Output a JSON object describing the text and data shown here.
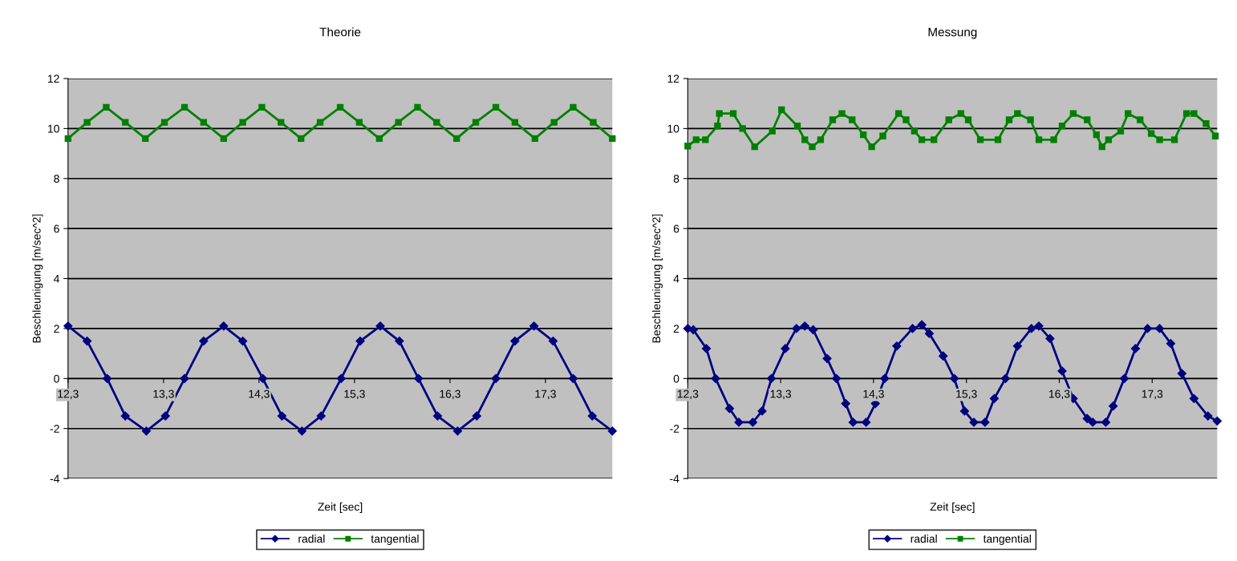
{
  "chart_data": [
    {
      "type": "line",
      "title": "Theorie",
      "xlabel": "Zeit [sec]",
      "ylabel": "Beschleunigung [m/sec^2]",
      "xlim": [
        12.3,
        18.0
      ],
      "ylim": [
        -4,
        12
      ],
      "xticks": [
        {
          "value": 12.3,
          "label": "12,3"
        },
        {
          "value": 13.3,
          "label": "13,3"
        },
        {
          "value": 14.3,
          "label": "14,3"
        },
        {
          "value": 15.3,
          "label": "15,3"
        },
        {
          "value": 16.3,
          "label": "16,3"
        },
        {
          "value": 17.3,
          "label": "17,3"
        }
      ],
      "yticks": [
        -4,
        -2,
        0,
        2,
        4,
        6,
        8,
        10,
        12
      ],
      "grid": "y",
      "legend": "bottom",
      "series": [
        {
          "name": "radial",
          "color": "#000080",
          "marker": "diamond",
          "x": [
            12.3,
            12.5,
            12.71,
            12.9,
            13.12,
            13.32,
            13.52,
            13.72,
            13.93,
            14.13,
            14.34,
            14.54,
            14.75,
            14.95,
            15.16,
            15.36,
            15.57,
            15.77,
            15.97,
            16.17,
            16.38,
            16.58,
            16.78,
            16.98,
            17.18,
            17.38,
            17.59,
            17.79,
            18.0
          ],
          "values": [
            2.1,
            1.5,
            0,
            -1.5,
            -2.1,
            -1.5,
            0,
            1.5,
            2.1,
            1.5,
            0,
            -1.5,
            -2.1,
            -1.5,
            0,
            1.5,
            2.1,
            1.5,
            0,
            -1.5,
            -2.1,
            -1.5,
            0,
            1.5,
            2.1,
            1.5,
            0,
            -1.5,
            -2.1
          ]
        },
        {
          "name": "tangential",
          "color": "#008000",
          "marker": "square",
          "x": [
            12.3,
            12.5,
            12.7,
            12.9,
            13.11,
            13.31,
            13.52,
            13.72,
            13.93,
            14.13,
            14.33,
            14.53,
            14.74,
            14.94,
            15.15,
            15.35,
            15.56,
            15.76,
            15.96,
            16.16,
            16.37,
            16.57,
            16.78,
            16.98,
            17.19,
            17.39,
            17.59,
            17.8,
            18.0
          ],
          "values": [
            9.6,
            10.25,
            10.85,
            10.25,
            9.6,
            10.25,
            10.85,
            10.25,
            9.6,
            10.25,
            10.85,
            10.25,
            9.6,
            10.25,
            10.85,
            10.25,
            9.6,
            10.25,
            10.85,
            10.25,
            9.6,
            10.25,
            10.85,
            10.25,
            9.6,
            10.25,
            10.85,
            10.25,
            9.6
          ]
        }
      ]
    },
    {
      "type": "line",
      "title": "Messung",
      "xlabel": "Zeit [sec]",
      "ylabel": "Beschleunigung [m/sec^2]",
      "xlim": [
        12.3,
        18.0
      ],
      "ylim": [
        -4,
        12
      ],
      "xticks": [
        {
          "value": 12.3,
          "label": "12,3"
        },
        {
          "value": 13.3,
          "label": "13,3"
        },
        {
          "value": 14.3,
          "label": "14,3"
        },
        {
          "value": 15.3,
          "label": "15,3"
        },
        {
          "value": 16.3,
          "label": "16,3"
        },
        {
          "value": 17.3,
          "label": "17,3"
        }
      ],
      "yticks": [
        -4,
        -2,
        0,
        2,
        4,
        6,
        8,
        10,
        12
      ],
      "grid": "y",
      "legend": "bottom",
      "series": [
        {
          "name": "radial",
          "color": "#000080",
          "marker": "diamond",
          "x": [
            12.3,
            12.36,
            12.5,
            12.6,
            12.75,
            12.85,
            13.0,
            13.1,
            13.2,
            13.35,
            13.47,
            13.56,
            13.65,
            13.8,
            13.9,
            14.0,
            14.08,
            14.22,
            14.32,
            14.42,
            14.55,
            14.72,
            14.82,
            14.9,
            15.05,
            15.17,
            15.28,
            15.38,
            15.5,
            15.6,
            15.72,
            15.85,
            16.0,
            16.08,
            16.2,
            16.33,
            16.45,
            16.6,
            16.66,
            16.8,
            16.88,
            17.0,
            17.12,
            17.25,
            17.38,
            17.5,
            17.62,
            17.75,
            17.9,
            18.0
          ],
          "values": [
            2.0,
            1.95,
            1.2,
            0.0,
            -1.2,
            -1.75,
            -1.75,
            -1.3,
            0.0,
            1.2,
            2.0,
            2.1,
            1.95,
            0.8,
            0,
            -1.0,
            -1.75,
            -1.75,
            -1.0,
            0,
            1.3,
            2.0,
            2.15,
            1.8,
            0.9,
            0,
            -1.3,
            -1.75,
            -1.75,
            -0.8,
            0,
            1.3,
            2.0,
            2.1,
            1.6,
            0.3,
            -0.8,
            -1.6,
            -1.75,
            -1.75,
            -1.1,
            0,
            1.2,
            2.0,
            2.0,
            1.4,
            0.2,
            -0.8,
            -1.5,
            -1.7
          ]
        },
        {
          "name": "tangential",
          "color": "#008000",
          "marker": "square",
          "x": [
            12.3,
            12.39,
            12.49,
            12.62,
            12.64,
            12.79,
            12.89,
            13.02,
            13.21,
            13.31,
            13.48,
            13.56,
            13.64,
            13.73,
            13.86,
            13.96,
            14.07,
            14.19,
            14.28,
            14.4,
            14.57,
            14.65,
            14.74,
            14.82,
            14.95,
            15.11,
            15.24,
            15.32,
            15.45,
            15.64,
            15.76,
            15.85,
            15.99,
            16.08,
            16.24,
            16.33,
            16.45,
            16.6,
            16.7,
            16.76,
            16.83,
            16.96,
            17.04,
            17.17,
            17.29,
            17.38,
            17.54,
            17.67,
            17.75,
            17.88,
            17.98
          ],
          "values": [
            9.3,
            9.55,
            9.55,
            10.1,
            10.6,
            10.6,
            10.0,
            9.27,
            9.9,
            10.75,
            10.1,
            9.55,
            9.27,
            9.55,
            10.35,
            10.6,
            10.35,
            9.75,
            9.27,
            9.7,
            10.6,
            10.35,
            9.9,
            9.55,
            9.55,
            10.35,
            10.6,
            10.35,
            9.55,
            9.55,
            10.35,
            10.6,
            10.35,
            9.55,
            9.55,
            10.1,
            10.6,
            10.35,
            9.75,
            9.27,
            9.55,
            9.9,
            10.6,
            10.35,
            9.8,
            9.55,
            9.55,
            10.6,
            10.6,
            10.2,
            9.7
          ]
        }
      ]
    }
  ]
}
